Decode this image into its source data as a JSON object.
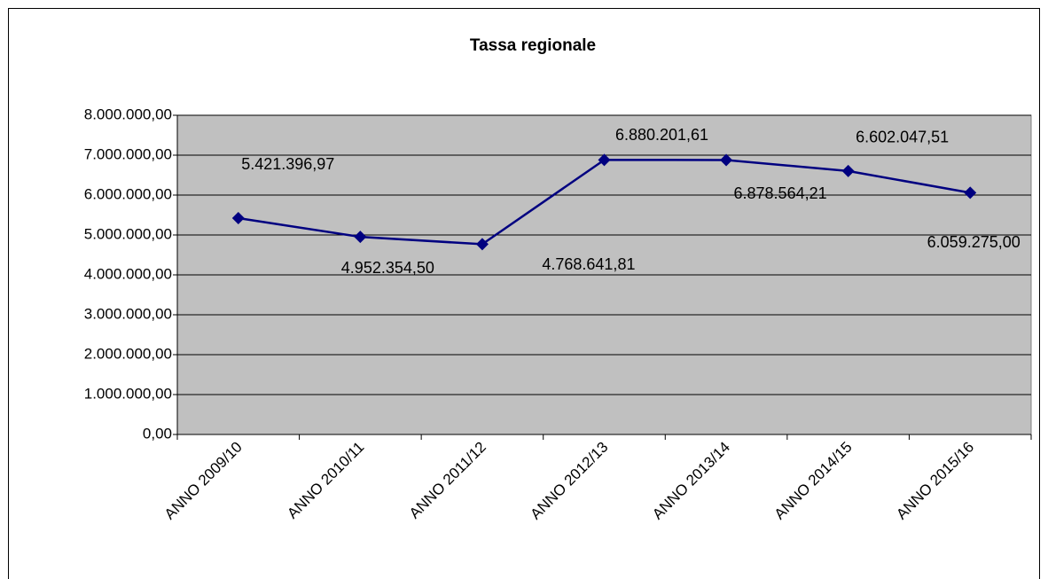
{
  "chart_data": {
    "type": "line",
    "title": "Tassa regionale",
    "categories": [
      "ANNO 2009/10",
      "ANNO 2010/11",
      "ANNO 2011/12",
      "ANNO 2012/13",
      "ANNO 2013/14",
      "ANNO 2014/15",
      "ANNO 2015/16"
    ],
    "series": [
      {
        "name": "Tassa regionale",
        "color": "#000080",
        "values": [
          5421396.97,
          4952354.5,
          4768641.81,
          6880201.61,
          6878564.21,
          6602047.51,
          6059275.0
        ],
        "value_labels": [
          "5.421.396,97",
          "4.952.354,50",
          "4.768.641,81",
          "6.880.201,61",
          "6.878.564,21",
          "6.602.047,51",
          "6.059.275,00"
        ]
      }
    ],
    "ylim": [
      0,
      8000000
    ],
    "yticks": [
      {
        "value": 0,
        "label": "0,00"
      },
      {
        "value": 1000000,
        "label": "1.000.000,00"
      },
      {
        "value": 2000000,
        "label": "2.000.000,00"
      },
      {
        "value": 3000000,
        "label": "3.000.000,00"
      },
      {
        "value": 4000000,
        "label": "4.000.000,00"
      },
      {
        "value": 5000000,
        "label": "5.000.000,00"
      },
      {
        "value": 6000000,
        "label": "6.000.000,00"
      },
      {
        "value": 7000000,
        "label": "7.000.000,00"
      },
      {
        "value": 8000000,
        "label": "8.000.000,00"
      }
    ],
    "grid": true,
    "plot_background": "#c0c0c0"
  }
}
